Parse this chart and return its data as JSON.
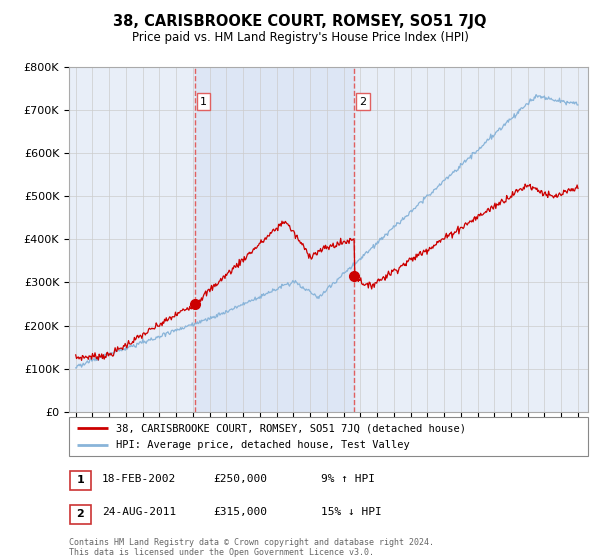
{
  "title": "38, CARISBROOKE COURT, ROMSEY, SO51 7JQ",
  "subtitle": "Price paid vs. HM Land Registry's House Price Index (HPI)",
  "ylim": [
    0,
    800000
  ],
  "yticks": [
    0,
    100000,
    200000,
    300000,
    400000,
    500000,
    600000,
    700000,
    800000
  ],
  "sale1": {
    "date_num": 2002.12,
    "price": 250000,
    "label": "1",
    "date_str": "18-FEB-2002",
    "price_str": "£250,000",
    "pct": "9% ↑ HPI"
  },
  "sale2": {
    "date_num": 2011.65,
    "price": 315000,
    "label": "2",
    "date_str": "24-AUG-2011",
    "price_str": "£315,000",
    "pct": "15% ↓ HPI"
  },
  "legend_line1": "38, CARISBROOKE COURT, ROMSEY, SO51 7JQ (detached house)",
  "legend_line2": "HPI: Average price, detached house, Test Valley",
  "footer": "Contains HM Land Registry data © Crown copyright and database right 2024.\nThis data is licensed under the Open Government Licence v3.0.",
  "red_color": "#cc0000",
  "blue_color": "#89b4d9",
  "grid_color": "#cccccc",
  "vline_color": "#e06060",
  "bg_color": "#e8eef8",
  "plot_bg": "#ffffff",
  "shade_color": "#dde6f5"
}
